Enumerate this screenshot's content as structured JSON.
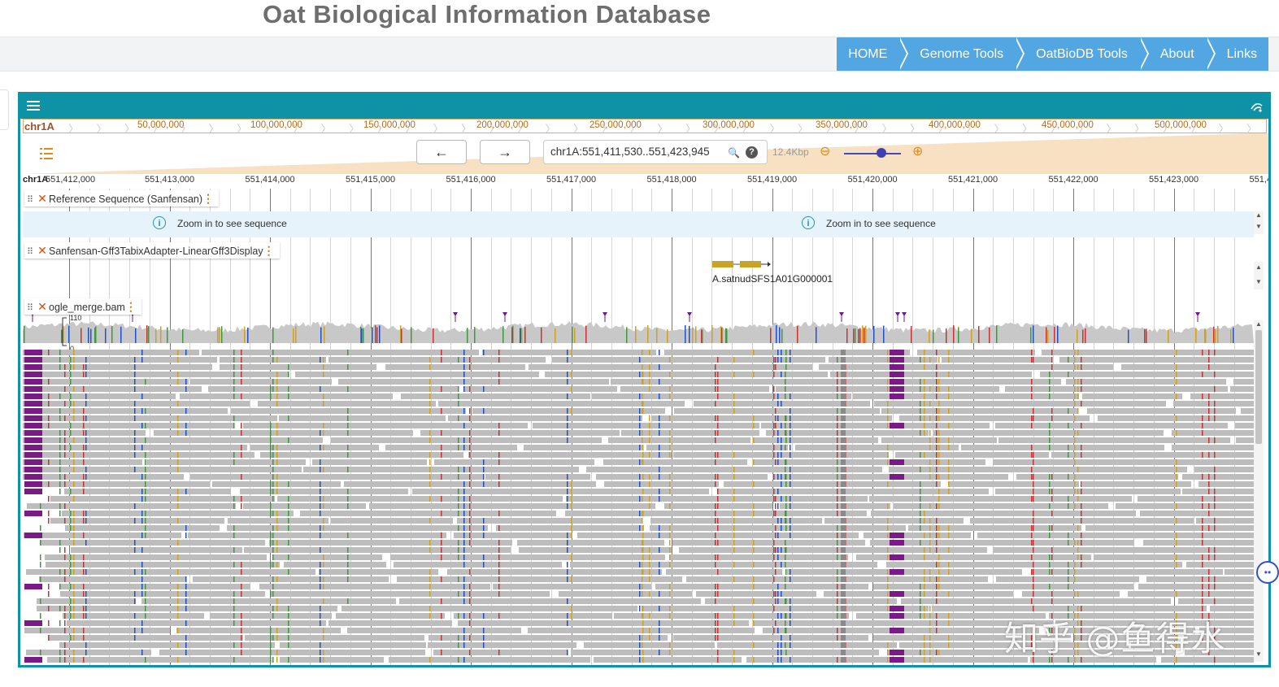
{
  "site": {
    "title": "Oat Biological Information Database"
  },
  "nav": {
    "items": [
      "HOME",
      "Genome Tools",
      "OatBioDB Tools",
      "About",
      "Links"
    ]
  },
  "browser": {
    "overview": {
      "chrom": "chr1A",
      "ticks": [
        "50,000,000",
        "100,000,000",
        "150,000,000",
        "200,000,000",
        "250,000,000",
        "300,000,000",
        "350,000,000",
        "400,000,000",
        "450,000,000",
        "500,000,000"
      ]
    },
    "location": "chr1A:551,411,530..551,423,945",
    "bp_per_px": "12.4Kbp",
    "ruler": {
      "chrom": "chr1A",
      "ticks": [
        "551,412,000",
        "551,413,000",
        "551,414,000",
        "551,415,000",
        "551,416,000",
        "551,417,000",
        "551,418,000",
        "551,419,000",
        "551,420,000",
        "551,421,000",
        "551,422,000",
        "551,423,000",
        "551,4"
      ]
    },
    "tracks": {
      "refseq": {
        "name": "Reference Sequence (Sanfensan)",
        "message": "Zoom in to see sequence"
      },
      "genes": {
        "name": "Sanfensan-Gff3TabixAdapter-LinearGff3Display",
        "gene_name": "A.satnudSFS1A01G000001"
      },
      "bam": {
        "name": "ogle_merge.bam",
        "coverage_max": "110",
        "coverage_min": "0"
      }
    }
  },
  "watermark": "知乎 @鱼得水",
  "colors": {
    "nav_blue": "#52a7e3",
    "frame_teal": "#0e93a6",
    "zoom_orange": "#f8e0c3",
    "gene_gold": "#c9a227",
    "clip_purple": "#7a1a86"
  }
}
